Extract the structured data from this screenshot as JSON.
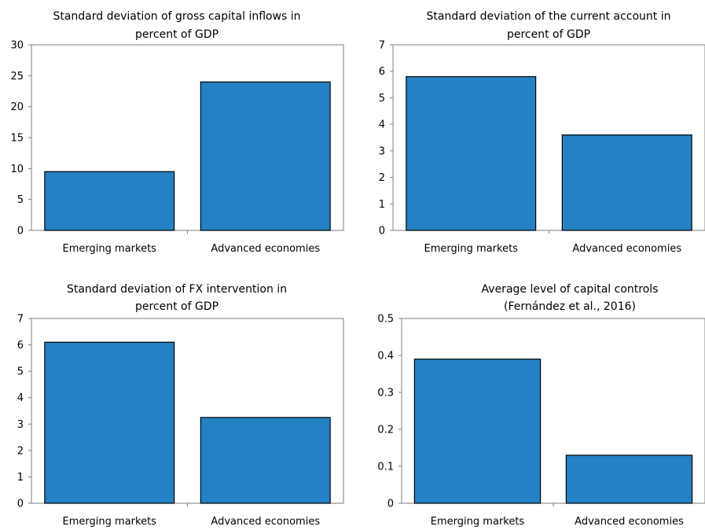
{
  "chart_data": [
    {
      "type": "bar",
      "title": [
        "Standard deviation of gross capital inflows in",
        "percent of GDP"
      ],
      "categories": [
        "Emerging markets",
        "Advanced economies"
      ],
      "values": [
        9.5,
        24
      ],
      "ylim": [
        0,
        30
      ],
      "yticks": [
        "0",
        "5",
        "10",
        "15",
        "20",
        "25",
        "30"
      ],
      "grid": false
    },
    {
      "type": "bar",
      "title": [
        "Standard deviation of the current account in",
        "percent of GDP"
      ],
      "categories": [
        "Emerging markets",
        "Advanced economies"
      ],
      "values": [
        5.8,
        3.6
      ],
      "ylim": [
        0,
        7
      ],
      "yticks": [
        "0",
        "1",
        "2",
        "3",
        "4",
        "5",
        "6",
        "7"
      ],
      "grid": false
    },
    {
      "type": "bar",
      "title": [
        "Standard deviation of FX intervention in",
        "percent of GDP"
      ],
      "categories": [
        "Emerging markets",
        "Advanced economies"
      ],
      "values": [
        6.1,
        3.25
      ],
      "ylim": [
        0,
        7
      ],
      "yticks": [
        "0",
        "1",
        "2",
        "3",
        "4",
        "5",
        "6",
        "7"
      ],
      "grid": false
    },
    {
      "type": "bar",
      "title": [
        "Average level of capital controls",
        "(Fernández et al., 2016)"
      ],
      "categories": [
        "Emerging markets",
        "Advanced economies"
      ],
      "values": [
        0.39,
        0.13
      ],
      "ylim": [
        0,
        0.5
      ],
      "yticks": [
        "0",
        "0.1",
        "0.2",
        "0.3",
        "0.4",
        "0.5"
      ],
      "grid": false
    }
  ],
  "colors": {
    "bar_fill": "#2481c3",
    "bar_stroke": "#000000",
    "axis": "#7f7f7f"
  }
}
